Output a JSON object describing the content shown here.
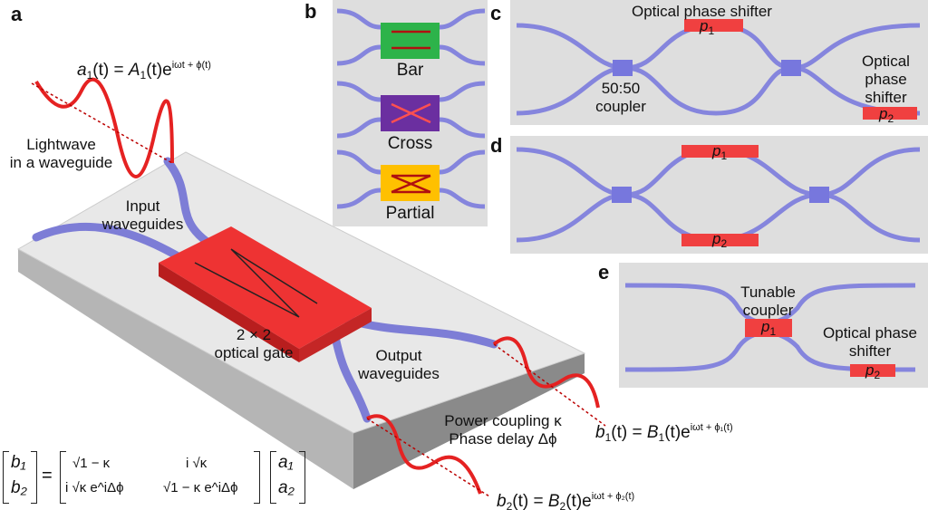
{
  "panels": {
    "a": "a",
    "b": "b",
    "c": "c",
    "d": "d",
    "e": "e"
  },
  "panel_a": {
    "input_eq": {
      "lhs": "a",
      "lhs_sub": "1",
      "lhs_arg": "(t) = ",
      "amp": "A",
      "amp_sub": "1",
      "amp_arg": "(t)e",
      "exp": "iωt + ϕ(t)"
    },
    "lightwave": [
      "Lightwave",
      "in a waveguide"
    ],
    "input_waveguides": [
      "Input",
      "waveguides"
    ],
    "gate": [
      "2 × 2",
      "optical gate"
    ],
    "output_waveguides": [
      "Output",
      "waveguides"
    ],
    "coupling": [
      "Power coupling κ",
      "Phase delay Δϕ"
    ],
    "b1_eq": {
      "lhs": "b",
      "sub": "1",
      "arg": "(t) = ",
      "amp": "B",
      "amp_sub": "1",
      "amp_arg": "(t)e",
      "exp": "iωt + ϕ₁(t)"
    },
    "b2_eq": {
      "lhs": "b",
      "sub": "2",
      "arg": "(t) = ",
      "amp": "B",
      "amp_sub": "2",
      "amp_arg": "(t)e",
      "exp": "iωt + ϕ₂(t)"
    },
    "matrix": {
      "out": [
        "b₁",
        "b₂"
      ],
      "eq": "=",
      "m11": "√1 − κ",
      "m12": "i √κ",
      "m21": "i √κ e^iΔϕ",
      "m22": "√1 − κ e^iΔϕ",
      "in": [
        "a₁",
        "a₂"
      ]
    }
  },
  "panel_b": {
    "states": [
      {
        "label": "Bar",
        "color": "#2db34a"
      },
      {
        "label": "Cross",
        "color": "#6b2fa0"
      },
      {
        "label": "Partial",
        "color": "#ffc000"
      }
    ]
  },
  "panel_c": {
    "shifter_top": "Optical phase shifter",
    "p1": "p",
    "p1_sub": "1",
    "coupler": [
      "50:50",
      "coupler"
    ],
    "shifter_right": [
      "Optical",
      "phase",
      "shifter"
    ],
    "p2": "p",
    "p2_sub": "2"
  },
  "panel_d": {
    "p1": "p",
    "p1_sub": "1",
    "p2": "p",
    "p2_sub": "2"
  },
  "panel_e": {
    "tunable": [
      "Tunable",
      "coupler"
    ],
    "p1": "p",
    "p1_sub": "1",
    "shifter": [
      "Optical phase",
      "shifter"
    ],
    "p2": "p",
    "p2_sub": "2"
  },
  "colors": {
    "waveguide": "#8585dd",
    "gate": "#ee3333",
    "panel_bg": "#dedede",
    "shifter": "#f04040"
  }
}
